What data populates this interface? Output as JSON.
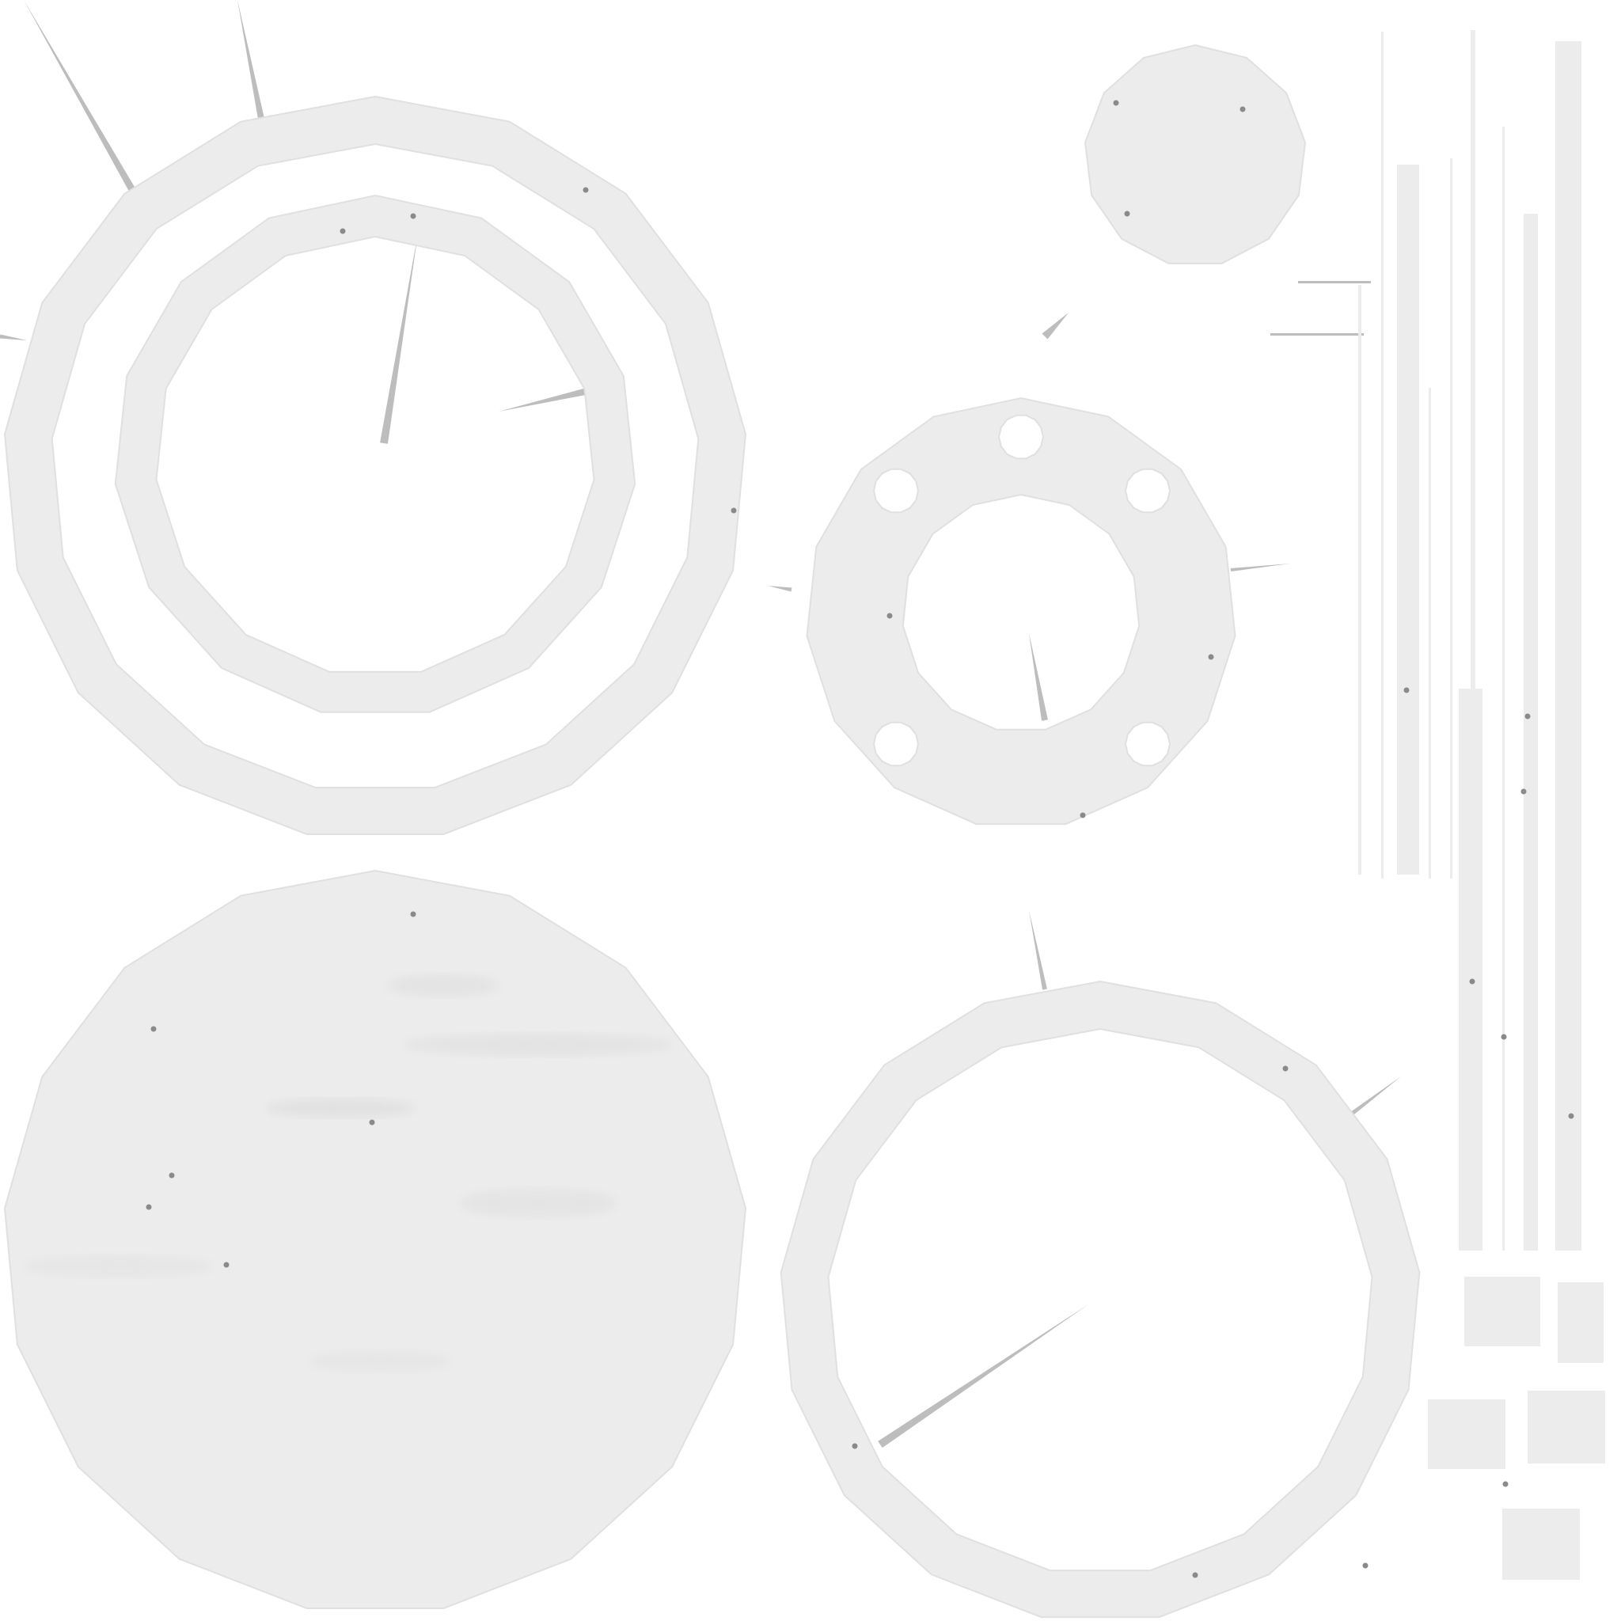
{
  "texture_atlas": {
    "background_color": "#ffffff",
    "island_color": "#ececec",
    "island_stroke_color": "#e0e0e0",
    "mottle_color": "#d9d9d9",
    "speck_color": "#8a8a8a",
    "sliver_color": "#bdbdbd",
    "island_count": 14
  }
}
